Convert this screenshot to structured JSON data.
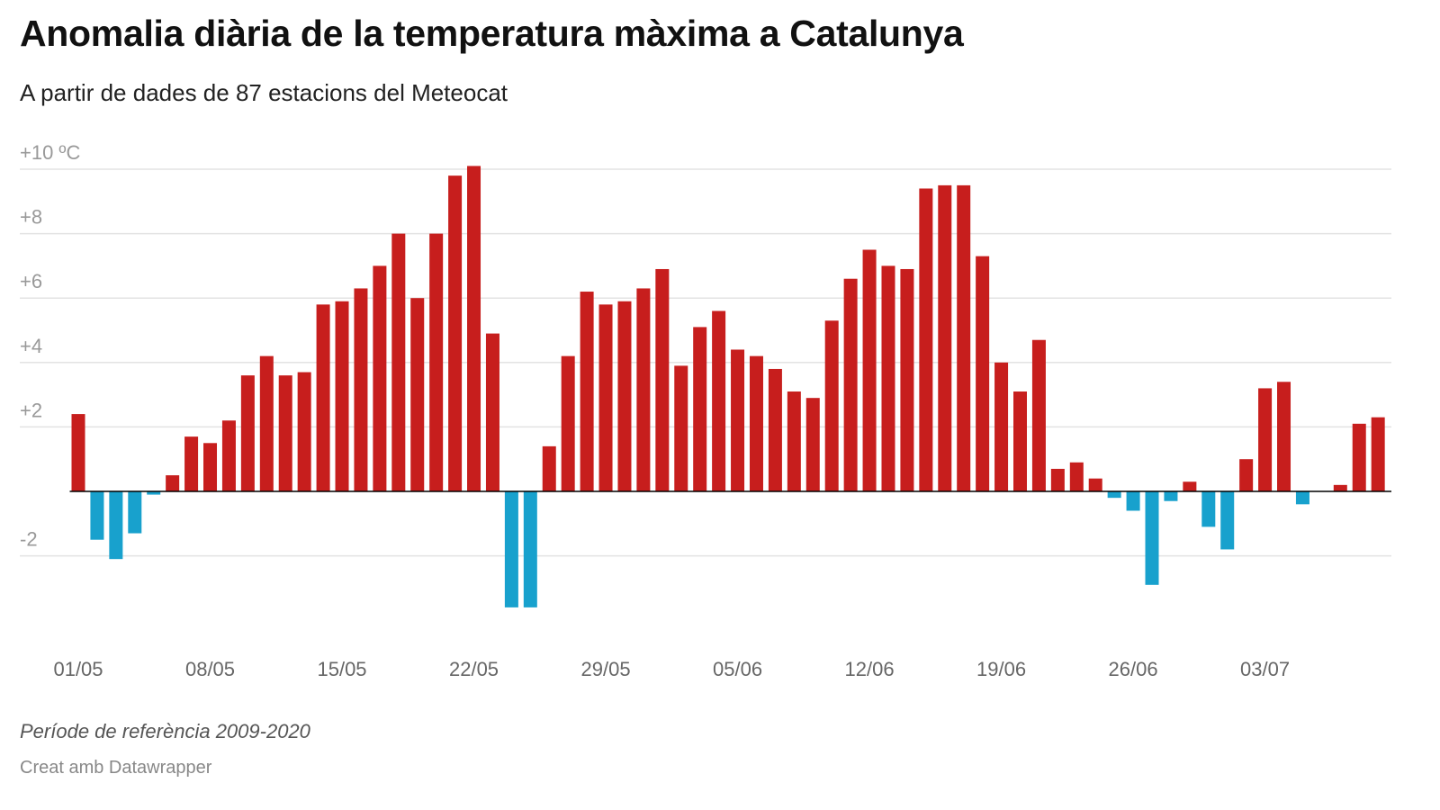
{
  "header": {
    "title": "Anomalia diària de la temperatura màxima a Catalunya",
    "subtitle": "A partir de dades de 87 estacions del Meteocat"
  },
  "footer": {
    "note": "Període de referència 2009-2020",
    "credit": "Creat amb Datawrapper"
  },
  "chart_data": {
    "type": "bar",
    "title": "Anomalia diària de la temperatura màxima a Catalunya",
    "subtitle": "A partir de dades de 87 estacions del Meteocat",
    "unit": "ºC",
    "ylim": [
      -4.5,
      10.4
    ],
    "yticks": [
      {
        "v": 10,
        "label": "+10 ºC"
      },
      {
        "v": 8,
        "label": "+8"
      },
      {
        "v": 6,
        "label": "+6"
      },
      {
        "v": 4,
        "label": "+4"
      },
      {
        "v": 2,
        "label": "+2"
      },
      {
        "v": -2,
        "label": "-2"
      }
    ],
    "xticks": [
      {
        "i": 0,
        "label": "01/05"
      },
      {
        "i": 7,
        "label": "08/05"
      },
      {
        "i": 14,
        "label": "15/05"
      },
      {
        "i": 21,
        "label": "22/05"
      },
      {
        "i": 28,
        "label": "29/05"
      },
      {
        "i": 35,
        "label": "05/06"
      },
      {
        "i": 42,
        "label": "12/06"
      },
      {
        "i": 49,
        "label": "19/06"
      },
      {
        "i": 56,
        "label": "26/06"
      },
      {
        "i": 63,
        "label": "03/07"
      }
    ],
    "x_start": "01/05",
    "x_end": "09/07",
    "values": [
      2.4,
      -1.5,
      -2.1,
      -1.3,
      -0.1,
      0.5,
      1.7,
      1.5,
      2.2,
      3.6,
      4.2,
      3.6,
      3.7,
      5.8,
      5.9,
      6.3,
      7.0,
      8.0,
      6.0,
      8.0,
      9.8,
      10.1,
      4.9,
      -3.6,
      -3.6,
      1.4,
      4.2,
      6.2,
      5.8,
      5.9,
      6.3,
      6.9,
      3.9,
      5.1,
      5.6,
      4.4,
      4.2,
      3.8,
      3.1,
      2.9,
      5.3,
      6.6,
      7.5,
      7.0,
      6.9,
      9.4,
      9.5,
      9.5,
      7.3,
      4.0,
      3.1,
      4.7,
      0.7,
      0.9,
      0.4,
      -0.2,
      -0.6,
      -2.9,
      -0.3,
      0.3,
      -1.1,
      -1.8,
      1.0,
      3.2,
      3.4,
      -0.4,
      0,
      0.2,
      2.1,
      2.3
    ],
    "colors": {
      "positive": "#c71e1d",
      "negative": "#18a1cd",
      "grid": "#e3e3e3",
      "zero": "#000000"
    },
    "grid": true
  }
}
